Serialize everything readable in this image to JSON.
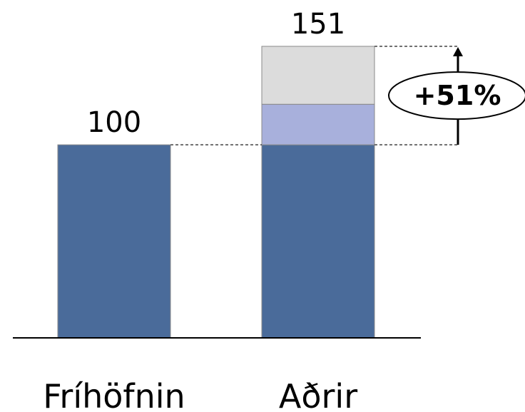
{
  "chart_data": {
    "type": "bar",
    "stacked": true,
    "categories": [
      "Fríhöfnin",
      "Aðrir"
    ],
    "series": [
      {
        "values": [
          100,
          100
        ],
        "color": "#4a6b9a"
      },
      {
        "values": [
          0,
          21
        ],
        "color": "#a8b0dc"
      },
      {
        "values": [
          0,
          30
        ],
        "color": "#dcdcdc"
      }
    ],
    "totals": [
      "100",
      "151"
    ],
    "ylim": [
      0,
      151
    ],
    "grid": false,
    "legend": "none",
    "annotation": {
      "text": "+51%",
      "from_value": 100,
      "to_value": 151,
      "category_index": 1
    }
  }
}
